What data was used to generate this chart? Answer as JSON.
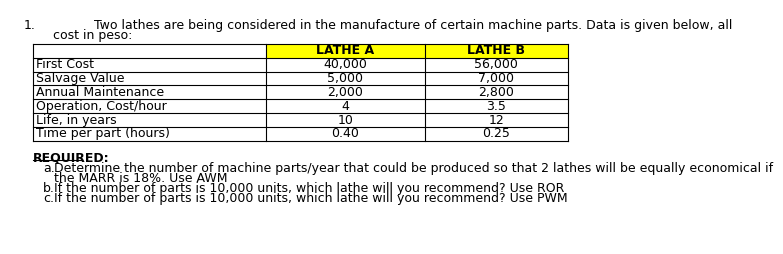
{
  "number": "1.",
  "intro_line1": "Two lathes are being considered in the manufacture of certain machine parts. Data is given below, all",
  "intro_line2": "cost in peso:",
  "col_headers": [
    "LATHE A",
    "LATHE B"
  ],
  "row_labels": [
    "First Cost",
    "Salvage Value",
    "Annual Maintenance",
    "Operation, Cost/hour",
    "Life, in years",
    "Time per part (hours)",
    ""
  ],
  "lathe_a": [
    "40,000",
    "5,000",
    "2,000",
    "4",
    "10",
    "0.40",
    ""
  ],
  "lathe_b": [
    "56,000",
    "7,000",
    "2,800",
    "3.5",
    "12",
    "0.25",
    ""
  ],
  "header_bg": "#ffff00",
  "required_label": "REQUIRED:",
  "bg_color": "#ffffff",
  "table_line_color": "#000000",
  "font_size_intro": 9,
  "font_size_table": 9,
  "font_size_required": 9,
  "font_size_items": 9,
  "item_lines": [
    [
      "a.",
      "Determine the number of machine parts/year that could be produced so that 2 lathes will be equally economical if"
    ],
    [
      "",
      "the MARR is 18%. Use AWM"
    ],
    [
      "b.",
      "If the number of parts is 10,000 units, which lathe will you recommend? Use ROR"
    ],
    [
      "c.",
      "If the number of parts is 10,000 units, which lathe will you recommend? Use PWM"
    ]
  ]
}
